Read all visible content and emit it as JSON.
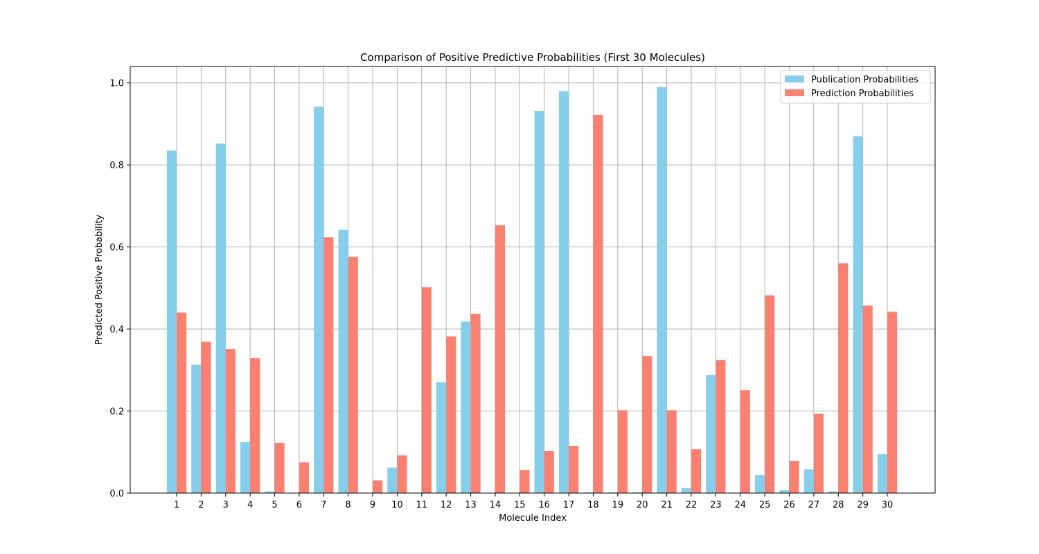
{
  "chart_data": {
    "type": "bar",
    "title": "Comparison of Positive Predictive Probabilities (First 30 Molecules)",
    "xlabel": "Molecule Index",
    "ylabel": "Predicted Positive Probability",
    "categories": [
      "1",
      "2",
      "3",
      "4",
      "5",
      "6",
      "7",
      "8",
      "9",
      "10",
      "11",
      "12",
      "13",
      "14",
      "15",
      "16",
      "17",
      "18",
      "19",
      "20",
      "21",
      "22",
      "23",
      "24",
      "25",
      "26",
      "27",
      "28",
      "29",
      "30"
    ],
    "series": [
      {
        "name": "Publication Probabilities",
        "color": "#87ceeb",
        "values": [
          0.835,
          0.313,
          0.852,
          0.125,
          0.004,
          0.0,
          0.942,
          0.642,
          0.0,
          0.062,
          0.0,
          0.27,
          0.418,
          0.0,
          0.0,
          0.932,
          0.98,
          0.002,
          0.002,
          0.002,
          0.99,
          0.012,
          0.288,
          0.0,
          0.044,
          0.007,
          0.058,
          0.004,
          0.87,
          0.095
        ]
      },
      {
        "name": "Prediction Probabilities",
        "color": "#fa8072",
        "values": [
          0.44,
          0.369,
          0.351,
          0.329,
          0.122,
          0.075,
          0.624,
          0.576,
          0.031,
          0.092,
          0.502,
          0.382,
          0.437,
          0.653,
          0.056,
          0.103,
          0.115,
          0.922,
          0.202,
          0.334,
          0.202,
          0.107,
          0.324,
          0.251,
          0.482,
          0.078,
          0.193,
          0.56,
          0.457,
          0.442
        ]
      }
    ],
    "ylim": [
      0,
      1.04
    ],
    "yticks": [
      "0.0",
      "0.2",
      "0.4",
      "0.6",
      "0.8",
      "1.0"
    ],
    "grid": true,
    "legend_position": "top-right"
  }
}
